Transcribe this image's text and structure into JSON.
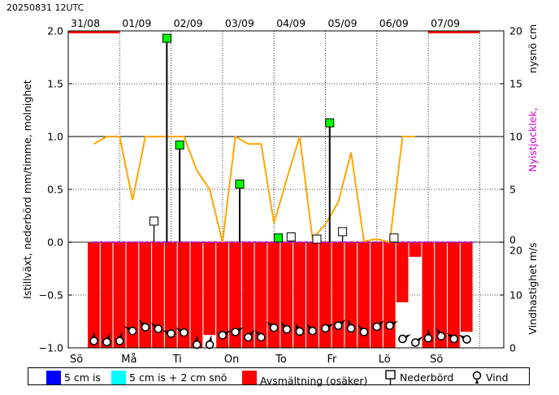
{
  "header": {
    "run_time": "20250831 12UTC"
  },
  "colors": {
    "snow_5cm": "#0000ff",
    "snow_5cm_plus_2cm": "#00ffff",
    "melt": "#ff0000",
    "precip_marker": "#00ff00",
    "ice_growth_line": "#ffa500",
    "wind_depth_axis_label": "#cc00cc"
  },
  "legend": {
    "items": [
      {
        "id": "snow5",
        "label": "5 cm is"
      },
      {
        "id": "snow5plus2",
        "label": "5 cm is + 2 cm snö"
      },
      {
        "id": "melt",
        "label": "Avsmältning (osäker)"
      },
      {
        "id": "precip",
        "label": "Nederbörd"
      },
      {
        "id": "wind",
        "label": "Vind"
      }
    ]
  },
  "chart_data": {
    "type": "meteogram",
    "top_dates": [
      "31/08",
      "01/09",
      "02/09",
      "03/09",
      "04/09",
      "05/09",
      "06/09",
      "07/09"
    ],
    "weekdays": [
      "Sö",
      "Må",
      "Ti",
      "On",
      "To",
      "Fr",
      "Lö",
      "Sö"
    ],
    "x_time_range_hours": [
      0,
      168
    ],
    "left_axis": {
      "label": "Istillväxt, nederbörd mm/timme, molnighet",
      "ticks": [
        "2.0",
        "1.5",
        "1.0",
        "0.5",
        "0.0",
        "−0.5",
        "−1.0"
      ],
      "ylim": [
        -1.0,
        2.0
      ]
    },
    "right_axis_top": {
      "label_part1": "nysnö cm",
      "label_part2": "Nyistjocklek,",
      "ticks": [
        "20",
        "15",
        "10",
        "5",
        "0"
      ],
      "ylim": [
        0,
        20
      ]
    },
    "right_axis_bottom": {
      "label": "Vindhastighet m/s",
      "ticks": [
        "20",
        "10",
        "0"
      ],
      "ylim": [
        0,
        20
      ]
    },
    "ice_growth_line": {
      "x": [
        12,
        18,
        24,
        30,
        36,
        42,
        48,
        54,
        60,
        66,
        72,
        78,
        84,
        90,
        96,
        102,
        108,
        114,
        120,
        126,
        132,
        138,
        144,
        150,
        156,
        162
      ],
      "y": [
        0.93,
        1.0,
        1.0,
        0.4,
        1.0,
        1.0,
        1.0,
        1.0,
        0.68,
        0.5,
        0.0,
        1.0,
        0.93,
        0.93,
        0.18,
        0.6,
        1.0,
        0.03,
        0.17,
        0.38,
        0.85,
        0.01,
        0.03,
        0.0,
        1.0,
        1.0
      ]
    },
    "precipitation_bars": [
      {
        "x": 46,
        "value": 1.93
      },
      {
        "x": 52,
        "value": 0.92
      },
      {
        "x": 80,
        "value": 0.55
      },
      {
        "x": 98,
        "value": 0.04
      },
      {
        "x": 122,
        "value": 1.13
      }
    ],
    "cloud_markers": [
      {
        "x": 40,
        "value": 0.2
      },
      {
        "x": 104,
        "value": 0.05
      },
      {
        "x": 116,
        "value": 0.03
      },
      {
        "x": 128,
        "value": 0.1
      },
      {
        "x": 152,
        "value": 0.04
      }
    ],
    "melt_top_markers_hours": [
      [
        0,
        24
      ],
      [
        168,
        192
      ]
    ],
    "melt_bars": {
      "x_hours": [
        12,
        18,
        24,
        30,
        36,
        42,
        48,
        54,
        60,
        66,
        72,
        78,
        84,
        90,
        96,
        102,
        108,
        114,
        120,
        126,
        132,
        138,
        144,
        150,
        156,
        162,
        168,
        174,
        180,
        186
      ],
      "depth": [
        -1.0,
        -1.0,
        -1.0,
        -1.0,
        -1.0,
        -1.0,
        -1.0,
        -1.0,
        -1.0,
        -0.88,
        -1.0,
        -1.0,
        -1.0,
        -1.0,
        -1.0,
        -1.0,
        -1.0,
        -1.0,
        -1.0,
        -1.0,
        -1.0,
        -1.0,
        -1.0,
        -1.0,
        -0.57,
        -0.14,
        -1.0,
        -1.0,
        -1.0,
        -0.85
      ]
    },
    "wind": {
      "x_hours": [
        12,
        18,
        24,
        30,
        36,
        42,
        48,
        54,
        60,
        66,
        72,
        78,
        84,
        90,
        96,
        102,
        108,
        114,
        120,
        126,
        132,
        138,
        144,
        150,
        156,
        162,
        168,
        174,
        180,
        186
      ],
      "speed_ms": [
        1.3,
        1.1,
        1.3,
        3.2,
        3.9,
        3.6,
        2.7,
        2.9,
        0.6,
        0.6,
        2.4,
        3.0,
        2.0,
        2.0,
        3.8,
        3.5,
        3.1,
        3.2,
        3.7,
        4.2,
        3.7,
        3.0,
        4.0,
        4.2,
        1.7,
        1.0,
        1.8,
        2.2,
        1.7,
        1.6
      ],
      "direction_deg": [
        0,
        20,
        15,
        300,
        320,
        310,
        290,
        300,
        0,
        10,
        60,
        60,
        40,
        320,
        310,
        320,
        330,
        320,
        60,
        50,
        340,
        320,
        50,
        60,
        60,
        50,
        0,
        330,
        310,
        300
      ]
    }
  }
}
